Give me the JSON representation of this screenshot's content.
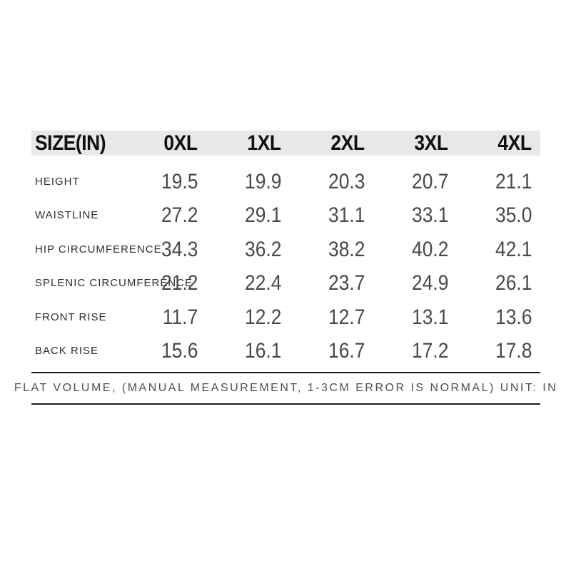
{
  "table": {
    "header": [
      "SIZE(IN)",
      "0XL",
      "1XL",
      "2XL",
      "3XL",
      "4XL"
    ],
    "rows": [
      {
        "label": "HEIGHT",
        "values": [
          "19.5",
          "19.9",
          "20.3",
          "20.7",
          "21.1"
        ]
      },
      {
        "label": "WAISTLINE",
        "values": [
          "27.2",
          "29.1",
          "31.1",
          "33.1",
          "35.0"
        ]
      },
      {
        "label": "HIP CIRCUMFERENCE",
        "values": [
          "34.3",
          "36.2",
          "38.2",
          "40.2",
          "42.1"
        ]
      },
      {
        "label": "SPLENIC CIRCUMFERENCE",
        "values": [
          "21.2",
          "22.4",
          "23.7",
          "24.9",
          "26.1"
        ]
      },
      {
        "label": "FRONT RISE",
        "values": [
          "11.7",
          "12.2",
          "12.7",
          "13.1",
          "13.6"
        ]
      },
      {
        "label": "BACK RISE",
        "values": [
          "15.6",
          "16.1",
          "16.7",
          "17.2",
          "17.8"
        ]
      }
    ]
  },
  "footer": {
    "note": "FLAT VOLUME, (MANUAL MEASUREMENT, 1-3CM ERROR IS NORMAL) UNIT: IN"
  },
  "colors": {
    "background": "#ffffff",
    "header_bg": "#e8e8e8",
    "header_text": "#0f0f0f",
    "label_text": "#2e2e2e",
    "value_text": "#484848",
    "rule": "#1c1c1c"
  }
}
